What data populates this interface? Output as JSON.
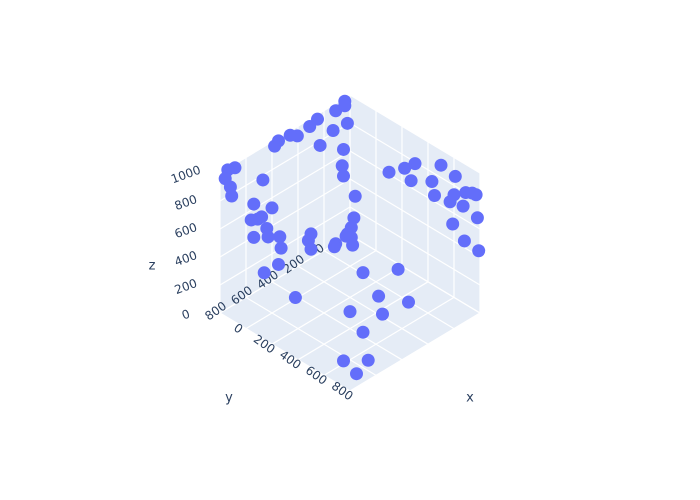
{
  "chart_data": {
    "type": "scatter",
    "title": "",
    "marker_color": "#636efa",
    "pane_color": "#e5ecf6",
    "grid_color": "#ffffff",
    "text_color": "#2a3f5f",
    "axes": {
      "x": {
        "label": "x",
        "ticks": [
          "0",
          "200",
          "400",
          "600",
          "800"
        ]
      },
      "y": {
        "label": "y",
        "ticks": [
          "0",
          "200",
          "400",
          "600",
          "800"
        ]
      },
      "z": {
        "label": "z",
        "ticks": [
          "0",
          "200",
          "400",
          "600",
          "800",
          "1000"
        ]
      }
    },
    "points": [
      {
        "x": 20,
        "y": 60,
        "z": 1000
      },
      {
        "x": 40,
        "y": 80,
        "z": 990
      },
      {
        "x": 10,
        "y": 120,
        "z": 960
      },
      {
        "x": 30,
        "y": 280,
        "z": 1000
      },
      {
        "x": 20,
        "y": 330,
        "z": 970
      },
      {
        "x": 10,
        "y": 470,
        "z": 980
      },
      {
        "x": 15,
        "y": 420,
        "z": 950
      },
      {
        "x": 10,
        "y": 560,
        "z": 990
      },
      {
        "x": 20,
        "y": 600,
        "z": 980
      },
      {
        "x": 15,
        "y": 900,
        "z": 990
      },
      {
        "x": 10,
        "y": 950,
        "z": 1000
      },
      {
        "x": 10,
        "y": 30,
        "z": 820
      },
      {
        "x": 10,
        "y": 140,
        "z": 830
      },
      {
        "x": 20,
        "y": 250,
        "z": 790
      },
      {
        "x": 10,
        "y": 60,
        "z": 650
      },
      {
        "x": 20,
        "y": 80,
        "z": 550
      },
      {
        "x": 10,
        "y": 60,
        "z": 460
      },
      {
        "x": 10,
        "y": 330,
        "z": 150
      },
      {
        "x": 10,
        "y": 120,
        "z": 10
      },
      {
        "x": 20,
        "y": 140,
        "z": 5
      },
      {
        "x": 20,
        "y": 680,
        "z": 120
      },
      {
        "x": 20,
        "y": 980,
        "z": 960
      },
      {
        "x": 40,
        "y": 960,
        "z": 900
      },
      {
        "x": 40,
        "y": 950,
        "z": 830
      },
      {
        "x": 30,
        "y": 700,
        "z": 800
      },
      {
        "x": 60,
        "y": 800,
        "z": 700
      },
      {
        "x": 80,
        "y": 840,
        "z": 620
      },
      {
        "x": 100,
        "y": 780,
        "z": 620
      },
      {
        "x": 20,
        "y": 620,
        "z": 550
      },
      {
        "x": 10,
        "y": 720,
        "z": 520
      },
      {
        "x": 60,
        "y": 700,
        "z": 470
      },
      {
        "x": 40,
        "y": 780,
        "z": 440
      },
      {
        "x": 200,
        "y": 830,
        "z": 560
      },
      {
        "x": 300,
        "y": 600,
        "z": 400
      },
      {
        "x": 100,
        "y": 640,
        "z": 400
      },
      {
        "x": 220,
        "y": 520,
        "z": 420
      },
      {
        "x": 380,
        "y": 360,
        "z": 340
      },
      {
        "x": 210,
        "y": 760,
        "z": 330
      },
      {
        "x": 250,
        "y": 780,
        "z": 480
      },
      {
        "x": 600,
        "y": 300,
        "z": 950
      },
      {
        "x": 800,
        "y": 100,
        "z": 1000
      },
      {
        "x": 900,
        "y": 90,
        "z": 970
      },
      {
        "x": 950,
        "y": 150,
        "z": 900
      },
      {
        "x": 1000,
        "y": 60,
        "z": 890
      },
      {
        "x": 990,
        "y": 20,
        "z": 850
      },
      {
        "x": 600,
        "y": 100,
        "z": 900
      },
      {
        "x": 780,
        "y": 150,
        "z": 900
      },
      {
        "x": 950,
        "y": 80,
        "z": 780
      },
      {
        "x": 900,
        "y": 10,
        "z": 810
      },
      {
        "x": 500,
        "y": 80,
        "z": 800
      },
      {
        "x": 560,
        "y": 90,
        "z": 750
      },
      {
        "x": 700,
        "y": 50,
        "z": 700
      },
      {
        "x": 800,
        "y": 30,
        "z": 700
      },
      {
        "x": 990,
        "y": 10,
        "z": 680
      },
      {
        "x": 800,
        "y": 10,
        "z": 530
      },
      {
        "x": 900,
        "y": 20,
        "z": 470
      },
      {
        "x": 1000,
        "y": 10,
        "z": 450
      },
      {
        "x": 50,
        "y": 10,
        "z": 310
      },
      {
        "x": 40,
        "y": 10,
        "z": 150
      },
      {
        "x": 20,
        "y": 10,
        "z": 70
      },
      {
        "x": 10,
        "y": 30,
        "z": 30
      },
      {
        "x": 10,
        "y": 40,
        "z": 20
      },
      {
        "x": 30,
        "y": 20,
        "z": 10
      },
      {
        "x": 300,
        "y": 200,
        "z": 10
      },
      {
        "x": 450,
        "y": 80,
        "z": 50
      },
      {
        "x": 520,
        "y": 300,
        "z": 20
      },
      {
        "x": 700,
        "y": 250,
        "z": 50
      },
      {
        "x": 650,
        "y": 400,
        "z": 20
      },
      {
        "x": 500,
        "y": 500,
        "z": 10
      },
      {
        "x": 700,
        "y": 600,
        "z": 30
      },
      {
        "x": 200,
        "y": 620,
        "z": 10
      },
      {
        "x": 800,
        "y": 850,
        "z": 20
      },
      {
        "x": 900,
        "y": 760,
        "z": 30
      },
      {
        "x": 950,
        "y": 900,
        "z": 40
      }
    ]
  }
}
